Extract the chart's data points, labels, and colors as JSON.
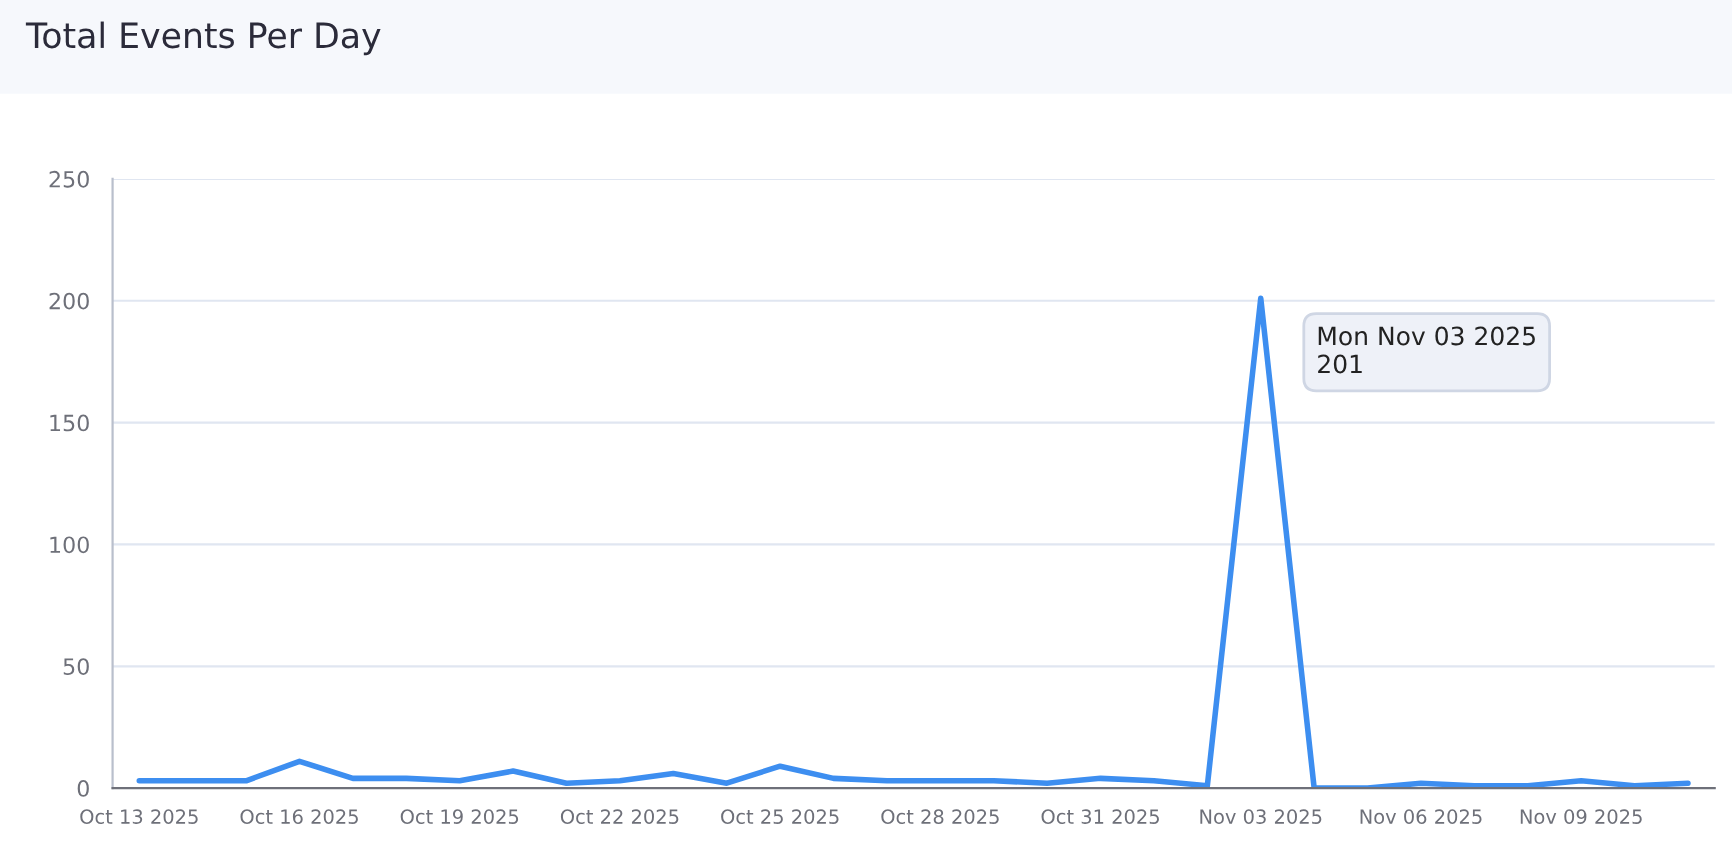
{
  "chart_data": {
    "type": "line",
    "title": "Total Events Per Day",
    "categories": [
      "Oct 13 2025",
      null,
      null,
      "Oct 16 2025",
      null,
      null,
      "Oct 19 2025",
      null,
      null,
      "Oct 22 2025",
      null,
      null,
      "Oct 25 2025",
      null,
      null,
      "Oct 28 2025",
      null,
      null,
      "Oct 31 2025",
      null,
      null,
      "Nov 03 2025",
      null,
      null,
      "Nov 06 2025",
      null,
      null,
      "Nov 09 2025",
      null,
      null
    ],
    "series": [
      {
        "color": "#3d8ef0",
        "values": [
          3,
          3,
          3,
          11,
          4,
          4,
          3,
          7,
          2,
          3,
          6,
          2,
          9,
          4,
          3,
          3,
          3,
          2,
          4,
          3,
          1,
          201,
          0,
          0,
          2,
          1,
          1,
          3,
          1,
          2
        ]
      }
    ],
    "ylim": [
      0,
      250
    ],
    "yticks": [
      0,
      50,
      100,
      150,
      200,
      250
    ],
    "grid": "y",
    "legend": false,
    "marker": "none",
    "line_style": "solid",
    "annotations": [
      {
        "text": "Mon Nov 03 2025\n201",
        "x": "Nov 03 2025",
        "y": 201
      }
    ]
  }
}
